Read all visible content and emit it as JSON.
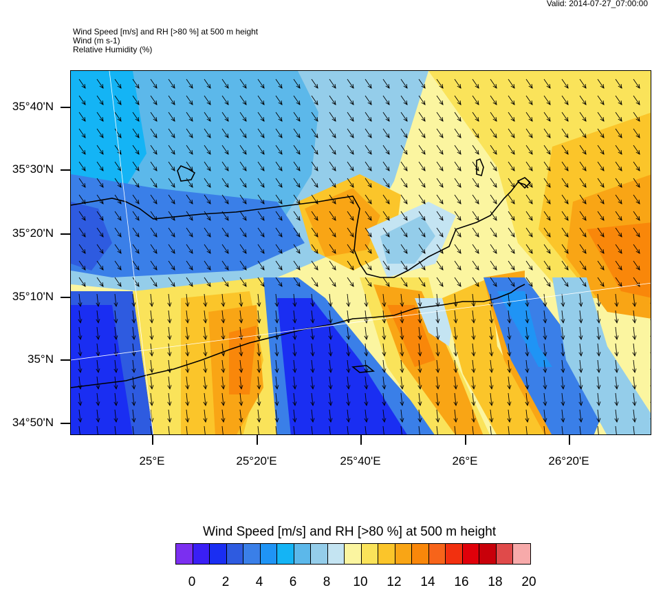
{
  "valid_time": "Valid: 2014-07-27_07:00:00",
  "header": {
    "line1": "Wind Speed [m/s] and RH [>80 %] at 500 m height",
    "line2": "Wind   (m s-1)",
    "line3": "Relative Humidity   (%)"
  },
  "lat_labels": [
    "35°40'N",
    "35°30'N",
    "35°20'N",
    "35°10'N",
    "35°N",
    "34°50'N"
  ],
  "lon_labels": [
    "25°E",
    "25°20'E",
    "25°40'E",
    "26°E",
    "26°20'E"
  ],
  "colorbar": {
    "title": "Wind Speed [m/s] and RH [>80 %] at 500 m height",
    "labels": [
      "0",
      "2",
      "4",
      "6",
      "8",
      "10",
      "12",
      "14",
      "16",
      "18",
      "20"
    ],
    "colors": [
      "#7b2ff0",
      "#3a1ff5",
      "#1a2ef2",
      "#2e5be0",
      "#3a7fe8",
      "#1f94f5",
      "#14b4f5",
      "#5cb8ea",
      "#94cdea",
      "#c4e4f2",
      "#fbf5a0",
      "#fae35a",
      "#fbc52a",
      "#f9a515",
      "#f9870a",
      "#f7641a",
      "#f2300f",
      "#e0000a",
      "#c8000a",
      "#e04a4a",
      "#f7aaaa"
    ]
  }
}
